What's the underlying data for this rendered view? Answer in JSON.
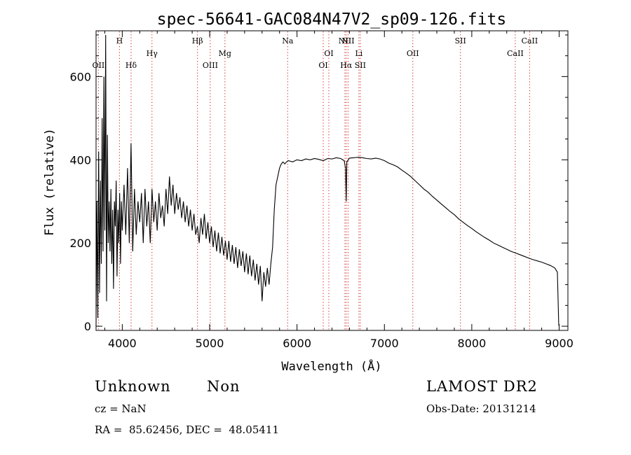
{
  "chart_data": {
    "type": "line",
    "title": "spec-56641-GAC084N47V2_sp09-126.fits",
    "xlabel": "Wavelength (Å)",
    "ylabel": "Flux (relative)",
    "xlim": [
      3700,
      9100
    ],
    "ylim": [
      -10,
      710
    ],
    "xticks": [
      4000,
      5000,
      6000,
      7000,
      8000,
      9000
    ],
    "yticks": [
      0,
      200,
      400,
      600
    ],
    "grid": false,
    "lines": [
      {
        "label": "OII",
        "x": 3727,
        "row": 3
      },
      {
        "label": "H",
        "x": 3968,
        "row": 1
      },
      {
        "label": "Hδ",
        "x": 4101,
        "row": 3
      },
      {
        "label": "Hγ",
        "x": 4340,
        "row": 2
      },
      {
        "label": "Hβ",
        "x": 4861,
        "row": 1
      },
      {
        "label": "OIII",
        "x": 5007,
        "row": 3
      },
      {
        "label": "Mg",
        "x": 5175,
        "row": 2
      },
      {
        "label": "Na",
        "x": 5893,
        "row": 1
      },
      {
        "label": "OI",
        "x": 6300,
        "row": 3
      },
      {
        "label": "OI",
        "x": 6364,
        "row": 2
      },
      {
        "label": "NII",
        "x": 6548,
        "row": 1
      },
      {
        "label": "Hα",
        "x": 6563,
        "row": 3
      },
      {
        "label": "NII",
        "x": 6584,
        "row": 1
      },
      {
        "label": "Li",
        "x": 6708,
        "row": 2
      },
      {
        "label": "SII",
        "x": 6724,
        "row": 3
      },
      {
        "label": "OII",
        "x": 7325,
        "row": 2
      },
      {
        "label": "SII",
        "x": 7870,
        "row": 1
      },
      {
        "label": "CaII",
        "x": 8498,
        "row": 2
      },
      {
        "label": "CaII",
        "x": 8662,
        "row": 1
      }
    ],
    "spectrum": [
      [
        3700,
        0
      ],
      [
        3710,
        300
      ],
      [
        3720,
        20
      ],
      [
        3730,
        420
      ],
      [
        3740,
        80
      ],
      [
        3750,
        350
      ],
      [
        3760,
        150
      ],
      [
        3770,
        500
      ],
      [
        3780,
        180
      ],
      [
        3790,
        600
      ],
      [
        3800,
        230
      ],
      [
        3810,
        700
      ],
      [
        3820,
        60
      ],
      [
        3830,
        460
      ],
      [
        3840,
        200
      ],
      [
        3850,
        300
      ],
      [
        3860,
        180
      ],
      [
        3870,
        330
      ],
      [
        3880,
        150
      ],
      [
        3890,
        280
      ],
      [
        3900,
        90
      ],
      [
        3910,
        300
      ],
      [
        3920,
        240
      ],
      [
        3930,
        350
      ],
      [
        3940,
        120
      ],
      [
        3950,
        280
      ],
      [
        3960,
        200
      ],
      [
        3970,
        320
      ],
      [
        3980,
        150
      ],
      [
        3990,
        300
      ],
      [
        4000,
        230
      ],
      [
        4020,
        340
      ],
      [
        4040,
        220
      ],
      [
        4060,
        380
      ],
      [
        4080,
        200
      ],
      [
        4100,
        440
      ],
      [
        4120,
        180
      ],
      [
        4140,
        330
      ],
      [
        4160,
        220
      ],
      [
        4180,
        300
      ],
      [
        4200,
        250
      ],
      [
        4220,
        320
      ],
      [
        4240,
        200
      ],
      [
        4260,
        330
      ],
      [
        4280,
        240
      ],
      [
        4300,
        300
      ],
      [
        4320,
        200
      ],
      [
        4340,
        330
      ],
      [
        4360,
        250
      ],
      [
        4380,
        300
      ],
      [
        4400,
        230
      ],
      [
        4420,
        320
      ],
      [
        4440,
        260
      ],
      [
        4460,
        290
      ],
      [
        4480,
        240
      ],
      [
        4500,
        330
      ],
      [
        4520,
        270
      ],
      [
        4540,
        360
      ],
      [
        4560,
        290
      ],
      [
        4580,
        340
      ],
      [
        4600,
        270
      ],
      [
        4620,
        320
      ],
      [
        4640,
        280
      ],
      [
        4660,
        310
      ],
      [
        4680,
        260
      ],
      [
        4700,
        300
      ],
      [
        4720,
        250
      ],
      [
        4740,
        290
      ],
      [
        4760,
        240
      ],
      [
        4780,
        280
      ],
      [
        4800,
        230
      ],
      [
        4820,
        270
      ],
      [
        4840,
        220
      ],
      [
        4860,
        240
      ],
      [
        4880,
        200
      ],
      [
        4900,
        260
      ],
      [
        4920,
        220
      ],
      [
        4940,
        270
      ],
      [
        4960,
        210
      ],
      [
        4980,
        250
      ],
      [
        5000,
        200
      ],
      [
        5020,
        240
      ],
      [
        5040,
        190
      ],
      [
        5060,
        230
      ],
      [
        5080,
        180
      ],
      [
        5100,
        225
      ],
      [
        5120,
        175
      ],
      [
        5140,
        215
      ],
      [
        5160,
        170
      ],
      [
        5180,
        205
      ],
      [
        5200,
        160
      ],
      [
        5220,
        205
      ],
      [
        5240,
        155
      ],
      [
        5260,
        195
      ],
      [
        5280,
        150
      ],
      [
        5300,
        190
      ],
      [
        5320,
        140
      ],
      [
        5340,
        185
      ],
      [
        5360,
        145
      ],
      [
        5380,
        180
      ],
      [
        5400,
        130
      ],
      [
        5420,
        175
      ],
      [
        5440,
        125
      ],
      [
        5460,
        170
      ],
      [
        5480,
        120
      ],
      [
        5500,
        160
      ],
      [
        5520,
        110
      ],
      [
        5540,
        150
      ],
      [
        5560,
        100
      ],
      [
        5580,
        145
      ],
      [
        5600,
        60
      ],
      [
        5620,
        130
      ],
      [
        5640,
        95
      ],
      [
        5660,
        140
      ],
      [
        5680,
        100
      ],
      [
        5700,
        150
      ],
      [
        5720,
        190
      ],
      [
        5740,
        280
      ],
      [
        5760,
        340
      ],
      [
        5780,
        360
      ],
      [
        5800,
        380
      ],
      [
        5820,
        390
      ],
      [
        5840,
        395
      ],
      [
        5860,
        390
      ],
      [
        5880,
        395
      ],
      [
        5900,
        398
      ],
      [
        5950,
        395
      ],
      [
        6000,
        400
      ],
      [
        6050,
        398
      ],
      [
        6100,
        402
      ],
      [
        6150,
        400
      ],
      [
        6200,
        403
      ],
      [
        6250,
        401
      ],
      [
        6300,
        398
      ],
      [
        6350,
        403
      ],
      [
        6400,
        402
      ],
      [
        6450,
        405
      ],
      [
        6500,
        403
      ],
      [
        6540,
        398
      ],
      [
        6555,
        380
      ],
      [
        6563,
        300
      ],
      [
        6570,
        395
      ],
      [
        6600,
        404
      ],
      [
        6650,
        405
      ],
      [
        6700,
        406
      ],
      [
        6750,
        405
      ],
      [
        6800,
        403
      ],
      [
        6850,
        402
      ],
      [
        6900,
        404
      ],
      [
        6950,
        402
      ],
      [
        7000,
        398
      ],
      [
        7050,
        392
      ],
      [
        7100,
        388
      ],
      [
        7150,
        383
      ],
      [
        7200,
        375
      ],
      [
        7250,
        368
      ],
      [
        7300,
        360
      ],
      [
        7350,
        350
      ],
      [
        7400,
        340
      ],
      [
        7450,
        330
      ],
      [
        7500,
        322
      ],
      [
        7550,
        312
      ],
      [
        7600,
        303
      ],
      [
        7650,
        294
      ],
      [
        7700,
        285
      ],
      [
        7750,
        276
      ],
      [
        7800,
        268
      ],
      [
        7850,
        258
      ],
      [
        7900,
        250
      ],
      [
        7950,
        242
      ],
      [
        8000,
        235
      ],
      [
        8050,
        227
      ],
      [
        8100,
        220
      ],
      [
        8150,
        213
      ],
      [
        8200,
        207
      ],
      [
        8250,
        200
      ],
      [
        8300,
        195
      ],
      [
        8350,
        190
      ],
      [
        8400,
        185
      ],
      [
        8450,
        180
      ],
      [
        8500,
        176
      ],
      [
        8550,
        172
      ],
      [
        8600,
        168
      ],
      [
        8650,
        164
      ],
      [
        8700,
        160
      ],
      [
        8750,
        157
      ],
      [
        8800,
        154
      ],
      [
        8850,
        150
      ],
      [
        8900,
        146
      ],
      [
        8950,
        140
      ],
      [
        8980,
        130
      ],
      [
        8995,
        5
      ],
      [
        9000,
        0
      ]
    ]
  },
  "info": {
    "class_type": "Unknown",
    "subclass": "Non",
    "survey": "LAMOST DR2",
    "cz": "cz = NaN",
    "obs_date": "Obs-Date: 20131214",
    "coords": "RA =  85.62456, DEC =  48.05411"
  }
}
